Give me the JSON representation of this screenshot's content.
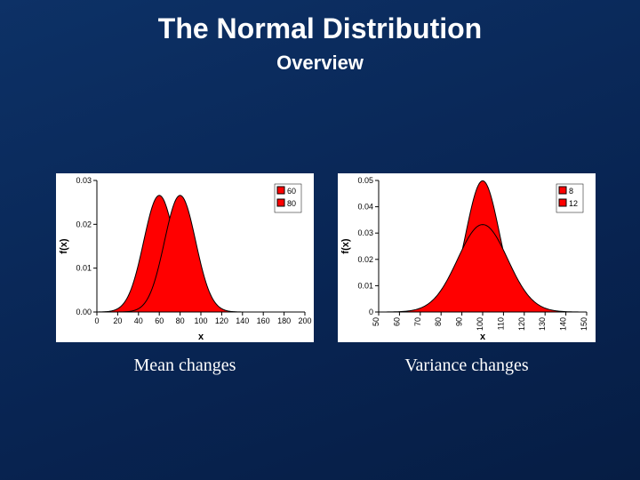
{
  "title": {
    "text": "The Normal Distribution",
    "fontsize": 32,
    "color": "#ffffff"
  },
  "subtitle": {
    "text": "Overview",
    "fontsize": 22,
    "color": "#ffffff"
  },
  "background": {
    "top": "#0d3166",
    "bottom": "#061d44"
  },
  "left_chart": {
    "type": "line-area",
    "caption": "Mean changes",
    "caption_fontsize": 20,
    "xlabel": "x",
    "ylabel": "f(x)",
    "label_fontsize": 11,
    "tick_fontsize": 9,
    "xlim": [
      0,
      200
    ],
    "xtick_step": 20,
    "xticks": [
      0,
      20,
      40,
      60,
      80,
      100,
      120,
      140,
      160,
      180,
      200
    ],
    "ylim": [
      0.0,
      0.03
    ],
    "yticks": [
      0.0,
      0.01,
      0.02,
      0.03
    ],
    "ytick_labels": [
      "0.00",
      "0.01",
      "0.02",
      "0.03"
    ],
    "series": [
      {
        "name": "60",
        "mu": 60,
        "sigma": 15,
        "color": "#ff0000",
        "fill": "#ff0000",
        "line_color": "#000000"
      },
      {
        "name": "80",
        "mu": 80,
        "sigma": 15,
        "color": "#ff0000",
        "fill": "#ff0000",
        "line_color": "#000000"
      }
    ],
    "legend": {
      "labels": [
        "60",
        "80"
      ],
      "box": true,
      "fontsize": 9,
      "x": "right",
      "y": "top"
    },
    "panel_bg": "#ffffff",
    "axis_color": "#000000",
    "grid": false
  },
  "right_chart": {
    "type": "line-area",
    "caption": "Variance changes",
    "caption_fontsize": 20,
    "xlabel": "x",
    "ylabel": "f(x)",
    "label_fontsize": 11,
    "tick_fontsize": 9,
    "xlim": [
      50,
      150
    ],
    "xtick_step": 10,
    "xticks": [
      50,
      60,
      70,
      80,
      90,
      100,
      110,
      120,
      130,
      140,
      150
    ],
    "xtick_rotation": -90,
    "ylim": [
      0,
      0.05
    ],
    "yticks": [
      0,
      0.01,
      0.02,
      0.03,
      0.04,
      0.05
    ],
    "ytick_labels": [
      "0",
      "0.01",
      "0.02",
      "0.03",
      "0.04",
      "0.05"
    ],
    "series": [
      {
        "name": "8",
        "mu": 100,
        "sigma": 8,
        "color": "#ff0000",
        "fill": "#ff0000",
        "line_color": "#000000"
      },
      {
        "name": "12",
        "mu": 100,
        "sigma": 12,
        "color": "#ff0000",
        "fill": "#ff0000",
        "line_color": "#000000"
      }
    ],
    "legend": {
      "labels": [
        "8",
        "12"
      ],
      "box": true,
      "fontsize": 9,
      "x": "right",
      "y": "top"
    },
    "panel_bg": "#ffffff",
    "axis_color": "#000000",
    "grid": false
  }
}
